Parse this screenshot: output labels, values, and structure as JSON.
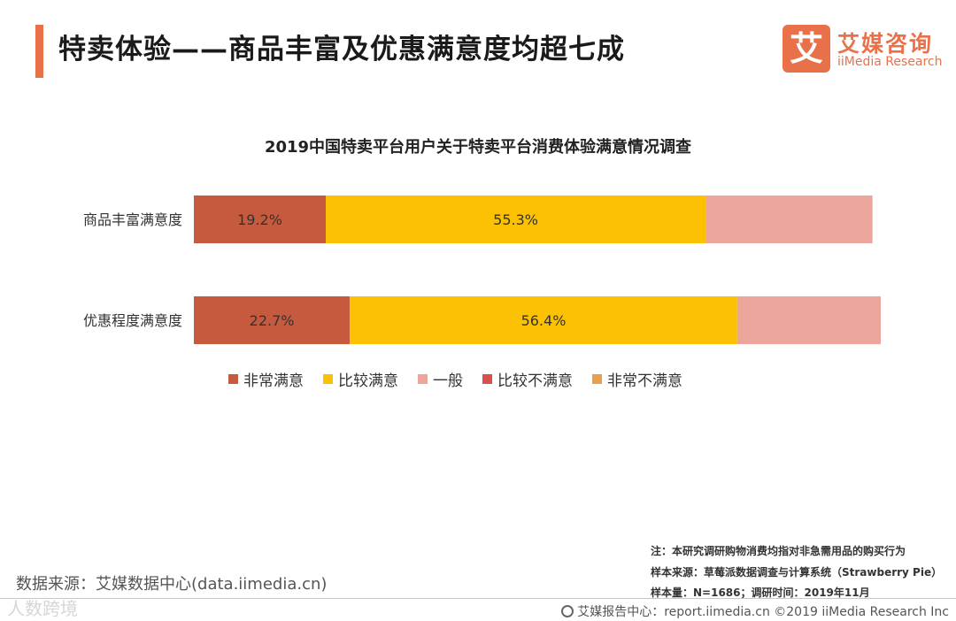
{
  "header": {
    "title": "特卖体验——商品丰富及优惠满意度均超七成"
  },
  "logo": {
    "mark": "艾",
    "name_cn": "艾媒咨询",
    "name_en": "iiMedia Research"
  },
  "chart_data": {
    "type": "bar",
    "orientation": "horizontal",
    "stacked": true,
    "title": "2019中国特卖平台用户关于特卖平台消费体验满意情况调查",
    "categories": [
      "商品丰富满意度",
      "优惠程度满意度"
    ],
    "series": [
      {
        "name": "非常满意",
        "color": "#c55a3e",
        "values": [
          19.2,
          22.7
        ],
        "labels": [
          "19.2%",
          "22.7%"
        ]
      },
      {
        "name": "比较满意",
        "color": "#fbc102",
        "values": [
          55.3,
          56.4
        ],
        "labels": [
          "55.3%",
          "56.4%"
        ]
      },
      {
        "name": "一般",
        "color": "#eba59a",
        "values": [
          24.3,
          20.9
        ],
        "labels": [
          "",
          ""
        ]
      },
      {
        "name": "比较不满意",
        "color": "#d9504a",
        "values": [
          0,
          0
        ],
        "labels": [
          "",
          ""
        ]
      },
      {
        "name": "非常不满意",
        "color": "#e8a04a",
        "values": [
          0,
          0
        ],
        "labels": [
          "",
          ""
        ]
      }
    ],
    "xlim": [
      0,
      100
    ],
    "xlabel": "",
    "ylabel": "",
    "grid": false,
    "legend_position": "bottom"
  },
  "notes": {
    "line1": "注：本研究调研购物消费均指对非急需用品的购买行为",
    "line2": "样本来源：草莓派数据调查与计算系统（Strawberry Pie）",
    "line3": "样本量：N=1686；调研时间：2019年11月"
  },
  "source": "数据来源：艾媒数据中心(data.iimedia.cn)",
  "watermark": "人数跨境",
  "footer": {
    "text": "艾媒报告中心：report.iimedia.cn  ©2019  iiMedia Research  Inc"
  }
}
